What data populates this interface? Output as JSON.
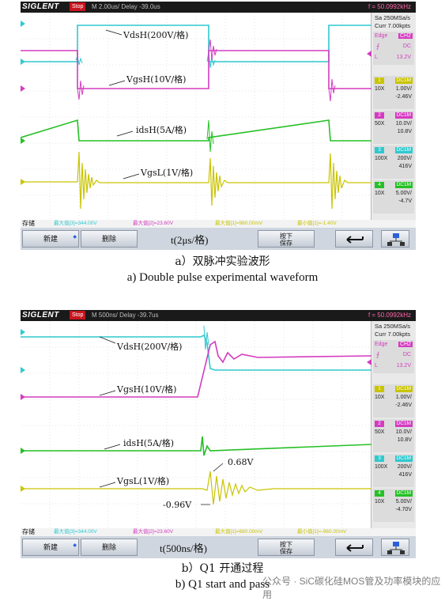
{
  "panels": [
    {
      "header": {
        "brand": "SIGLENT",
        "status": "Stop",
        "timebase": "M 2.00us/ Delay -39.0us",
        "freq": "f = 50.0992kHz"
      },
      "side": {
        "sa": "Sa 250MSa/s",
        "curr": "Curr 7.00kpts",
        "edge": "Edge",
        "ch": "CH2",
        "coupling": "DC",
        "level": "13.2V",
        "channels": [
          {
            "num": "1",
            "cpl": "DC1M",
            "probe": "10X",
            "v1": "1.00V/",
            "v2": "-2.46V",
            "color": "#d8d600"
          },
          {
            "num": "2",
            "cpl": "DC1M",
            "probe": "50X",
            "v1": "10.0V/",
            "v2": "10.8V",
            "color": "#e040c8"
          },
          {
            "num": "3",
            "cpl": "DC1M",
            "probe": "100X",
            "v1": "200V/",
            "v2": "416V",
            "color": "#2ec9cf"
          },
          {
            "num": "4",
            "cpl": "DC1M",
            "probe": "10X",
            "v1": "5.00V/",
            "v2": "-4.7V",
            "color": "#25c025"
          }
        ]
      },
      "measure": {
        "label": "存储",
        "m1": "最大值[3]=344.00V",
        "m2": "最大值[2]=23.60V",
        "m3": "最大值[1]=960.00mV",
        "m4": "最小值[1]=-1.40V"
      },
      "buttons": {
        "new": "新建",
        "delete": "删除",
        "timescale": "t(2μs/格)",
        "save_line1": "按下",
        "save_line2": "保存"
      },
      "traces": {
        "vdsh": "VdsH(200V/格)",
        "vgsh": "VgsH(10V/格)",
        "idsh": "idsH(5A/格)",
        "vgsl": "VgsL(1V/格)"
      },
      "caption_cn": "a）双脉冲实验波形",
      "caption_en": "a) Double pulse experimental waveform"
    },
    {
      "header": {
        "brand": "SIGLENT",
        "status": "Stop",
        "timebase": "M 500ns/ Delay -39.7us",
        "freq": "f = 50.0992kHz"
      },
      "side": {
        "sa": "Sa 250MSa/s",
        "curr": "Curr 7.00kpts",
        "edge": "Edge",
        "ch": "CH2",
        "coupling": "DC",
        "level": "13.2V",
        "channels": [
          {
            "num": "1",
            "cpl": "DC1M",
            "probe": "10X",
            "v1": "1.00V/",
            "v2": "-2.46V",
            "color": "#d8d600"
          },
          {
            "num": "2",
            "cpl": "DC1M",
            "probe": "50X",
            "v1": "10.0V/",
            "v2": "10.8V",
            "color": "#e040c8"
          },
          {
            "num": "3",
            "cpl": "DC1M",
            "probe": "100X",
            "v1": "200V/",
            "v2": "416V",
            "color": "#2ec9cf"
          },
          {
            "num": "4",
            "cpl": "DC1M",
            "probe": "10X",
            "v1": "5.00V/",
            "v2": "-4.70V",
            "color": "#25c025"
          }
        ]
      },
      "measure": {
        "label": "存储",
        "m1": "最大值[3]=344.00V",
        "m2": "最大值[2]=23.60V",
        "m3": "最大值[1]=680.00mV",
        "m4": "最小值[1]=-960.00mV"
      },
      "buttons": {
        "new": "新建",
        "delete": "删除",
        "timescale": "t(500ns/格)",
        "save_line1": "按下",
        "save_line2": "保存"
      },
      "traces": {
        "vdsh": "VdsH(200V/格)",
        "vgsh": "VgsH(10V/格)",
        "idsh": "idsH(5A/格)",
        "vgsl": "VgsL(1V/格)"
      },
      "annotations": {
        "peak": "0.68V",
        "trough": "-0.96V"
      },
      "caption_cn": "b）Q1 开通过程",
      "caption_en": "b) Q1 start and pass"
    }
  ],
  "watermark": "公众号 · SiC碳化硅MOS管及功率模块的应用"
}
